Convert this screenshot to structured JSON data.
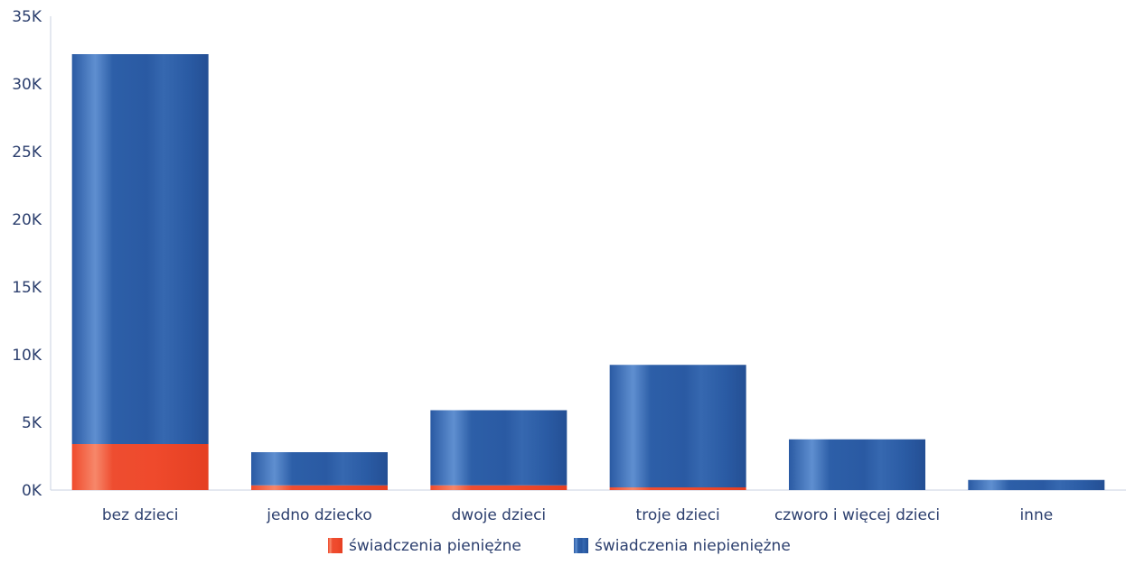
{
  "chart_data": {
    "type": "bar",
    "stacked": true,
    "categories": [
      "bez dzieci",
      "jedno dziecko",
      "dwoje dzieci",
      "troje dzieci",
      "czworo i więcej dzieci",
      "inne"
    ],
    "series": [
      {
        "name": "świadczenia pieniężne",
        "color": "#ef4a2c",
        "values": [
          3400,
          350,
          350,
          200,
          0,
          0
        ]
      },
      {
        "name": "świadczenia niepieniężne",
        "color": "#2a5ea8",
        "values": [
          28800,
          2450,
          5550,
          9050,
          3750,
          750
        ]
      }
    ],
    "yticks": [
      "0K",
      "5K",
      "10K",
      "15K",
      "20K",
      "25K",
      "30K",
      "35K"
    ],
    "ylim": [
      0,
      35000
    ],
    "legend_position": "bottom-center",
    "grid": false
  }
}
